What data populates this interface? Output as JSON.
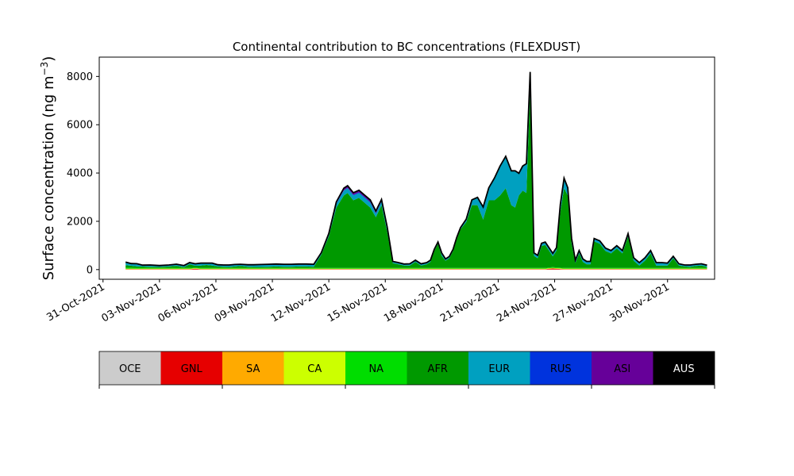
{
  "chart_data": {
    "type": "area",
    "stacked": true,
    "title": "Continental contribution to BC concentrations (FLEXDUST)",
    "ylabel_main": "Surface concentration (ng m",
    "ylabel_sup": "−3",
    "ylabel_close": ")",
    "xlabel": "",
    "ylim": [
      -400,
      8800
    ],
    "yticks": [
      0,
      2000,
      4000,
      6000,
      8000
    ],
    "ytick_labels": [
      "0",
      "2000",
      "4000",
      "6000",
      "8000"
    ],
    "xlim_day": [
      -0.2,
      32.5
    ],
    "xticks_day": [
      0,
      3,
      6,
      9,
      12,
      15,
      18,
      21,
      24,
      27,
      30
    ],
    "xtick_labels": [
      "31-Oct-2021",
      "03-Nov-2021",
      "06-Nov-2021",
      "09-Nov-2021",
      "12-Nov-2021",
      "15-Nov-2021",
      "18-Nov-2021",
      "21-Nov-2021",
      "24-Nov-2021",
      "27-Nov-2021",
      "30-Nov-2021"
    ],
    "grid": false,
    "legend_position": "colorbar below plot",
    "x_day": [
      1.2,
      1.5,
      1.8,
      2.1,
      2.5,
      3.0,
      3.5,
      3.9,
      4.3,
      4.6,
      4.9,
      5.2,
      5.5,
      5.8,
      6.1,
      6.4,
      6.7,
      7.0,
      7.3,
      7.7,
      8.0,
      8.4,
      8.8,
      9.2,
      9.6,
      10.0,
      10.4,
      10.8,
      11.2,
      11.6,
      12.0,
      12.4,
      12.8,
      13.0,
      13.3,
      13.6,
      13.9,
      14.2,
      14.5,
      14.8,
      15.1,
      15.4,
      15.7,
      16.0,
      16.3,
      16.6,
      16.9,
      17.2,
      17.4,
      17.6,
      17.8,
      18.0,
      18.2,
      18.4,
      18.6,
      18.8,
      19.0,
      19.3,
      19.6,
      19.9,
      20.2,
      20.5,
      20.8,
      21.1,
      21.4,
      21.7,
      21.9,
      22.1,
      22.3,
      22.5,
      22.7,
      22.9,
      23.1,
      23.3,
      23.5,
      23.7,
      23.9,
      24.1,
      24.3,
      24.5,
      24.7,
      24.9,
      25.1,
      25.3,
      25.5,
      25.7,
      25.9,
      26.1,
      26.4,
      26.7,
      27.0,
      27.3,
      27.6,
      27.9,
      28.2,
      28.5,
      28.8,
      29.1,
      29.4,
      29.7,
      30.0,
      30.3,
      30.6,
      30.9,
      31.2,
      31.5,
      31.8,
      32.1
    ],
    "series": [
      {
        "name": "OCE",
        "color": "#cccccc",
        "values": [
          5,
          5,
          5,
          5,
          5,
          5,
          5,
          5,
          5,
          5,
          5,
          5,
          5,
          5,
          5,
          5,
          5,
          5,
          5,
          5,
          5,
          5,
          5,
          5,
          5,
          5,
          5,
          5,
          5,
          5,
          5,
          5,
          5,
          5,
          5,
          5,
          5,
          5,
          5,
          5,
          5,
          5,
          5,
          5,
          5,
          5,
          5,
          5,
          5,
          5,
          5,
          5,
          5,
          5,
          5,
          5,
          5,
          5,
          5,
          5,
          5,
          5,
          5,
          5,
          5,
          5,
          5,
          5,
          5,
          5,
          5,
          5,
          5,
          5,
          5,
          5,
          5,
          5,
          5,
          5,
          5,
          5,
          5,
          5,
          5,
          5,
          5,
          5,
          5,
          5,
          5,
          5,
          5,
          5,
          5,
          5,
          5,
          5,
          5,
          5,
          5,
          5,
          5,
          5,
          5,
          5,
          5,
          5
        ]
      },
      {
        "name": "GNL",
        "color": "#e60000",
        "values": [
          10,
          10,
          10,
          10,
          10,
          10,
          10,
          10,
          10,
          10,
          30,
          10,
          10,
          10,
          10,
          10,
          10,
          10,
          10,
          10,
          10,
          10,
          10,
          10,
          10,
          10,
          10,
          10,
          10,
          10,
          10,
          10,
          10,
          10,
          10,
          10,
          10,
          10,
          10,
          10,
          10,
          10,
          10,
          10,
          10,
          10,
          10,
          10,
          10,
          10,
          10,
          10,
          10,
          10,
          10,
          10,
          10,
          10,
          10,
          10,
          10,
          10,
          10,
          10,
          10,
          10,
          10,
          10,
          10,
          10,
          10,
          10,
          10,
          10,
          10,
          30,
          40,
          30,
          20,
          10,
          10,
          10,
          10,
          10,
          10,
          10,
          10,
          10,
          10,
          10,
          10,
          10,
          10,
          10,
          10,
          10,
          10,
          10,
          10,
          10,
          10,
          10,
          10,
          10,
          10,
          10,
          10,
          10
        ]
      },
      {
        "name": "SA",
        "color": "#ffaa00",
        "values": [
          10,
          10,
          10,
          10,
          10,
          10,
          10,
          10,
          10,
          10,
          10,
          10,
          10,
          10,
          10,
          10,
          10,
          10,
          10,
          10,
          10,
          10,
          10,
          10,
          10,
          10,
          10,
          10,
          10,
          10,
          10,
          10,
          10,
          10,
          10,
          10,
          10,
          10,
          10,
          10,
          10,
          10,
          10,
          10,
          10,
          10,
          10,
          10,
          10,
          10,
          10,
          10,
          10,
          10,
          10,
          10,
          10,
          10,
          10,
          10,
          10,
          10,
          10,
          10,
          10,
          10,
          10,
          10,
          10,
          10,
          10,
          10,
          10,
          10,
          10,
          10,
          10,
          10,
          10,
          10,
          10,
          10,
          10,
          10,
          10,
          10,
          10,
          10,
          10,
          10,
          10,
          10,
          10,
          10,
          10,
          10,
          10,
          10,
          10,
          10,
          10,
          10,
          10,
          10,
          10,
          10,
          10,
          10
        ]
      },
      {
        "name": "CA",
        "color": "#ccff00",
        "values": [
          15,
          15,
          15,
          15,
          15,
          15,
          15,
          15,
          15,
          15,
          15,
          15,
          15,
          15,
          15,
          15,
          15,
          15,
          15,
          15,
          15,
          15,
          15,
          15,
          15,
          15,
          15,
          15,
          15,
          15,
          15,
          15,
          15,
          15,
          15,
          15,
          15,
          15,
          15,
          15,
          15,
          15,
          15,
          15,
          15,
          15,
          15,
          15,
          15,
          15,
          15,
          15,
          15,
          15,
          15,
          15,
          15,
          15,
          15,
          15,
          15,
          15,
          15,
          15,
          15,
          15,
          15,
          15,
          15,
          15,
          15,
          15,
          15,
          15,
          15,
          15,
          15,
          15,
          15,
          15,
          15,
          15,
          15,
          15,
          15,
          15,
          15,
          15,
          15,
          15,
          15,
          15,
          15,
          15,
          15,
          15,
          15,
          15,
          15,
          15,
          15,
          15,
          15,
          15,
          15,
          15,
          15,
          15
        ]
      },
      {
        "name": "NA",
        "color": "#00dd00",
        "values": [
          40,
          40,
          35,
          35,
          30,
          30,
          30,
          35,
          30,
          30,
          30,
          30,
          30,
          30,
          30,
          30,
          30,
          30,
          30,
          30,
          30,
          30,
          30,
          30,
          30,
          30,
          30,
          30,
          30,
          30,
          30,
          30,
          30,
          30,
          30,
          30,
          30,
          30,
          30,
          30,
          30,
          30,
          30,
          30,
          30,
          30,
          30,
          30,
          30,
          30,
          30,
          30,
          30,
          30,
          30,
          30,
          30,
          30,
          30,
          30,
          30,
          30,
          30,
          30,
          30,
          30,
          30,
          30,
          30,
          30,
          30,
          30,
          30,
          30,
          30,
          30,
          30,
          30,
          30,
          30,
          30,
          30,
          30,
          30,
          30,
          30,
          30,
          30,
          30,
          30,
          30,
          30,
          30,
          30,
          30,
          30,
          30,
          30,
          30,
          30,
          30,
          30,
          30,
          30,
          30,
          30,
          30,
          30
        ]
      },
      {
        "name": "AFR",
        "color": "#009900",
        "values": [
          100,
          80,
          60,
          50,
          50,
          40,
          60,
          80,
          30,
          150,
          70,
          100,
          120,
          100,
          60,
          50,
          40,
          60,
          80,
          50,
          40,
          40,
          50,
          60,
          50,
          50,
          60,
          60,
          50,
          550,
          1300,
          2500,
          3000,
          3100,
          2800,
          2900,
          2700,
          2500,
          2100,
          2600,
          1500,
          200,
          150,
          100,
          100,
          250,
          100,
          150,
          250,
          700,
          1000,
          500,
          300,
          400,
          700,
          1200,
          1600,
          1900,
          2600,
          2600,
          2000,
          2800,
          2800,
          3000,
          3300,
          2600,
          2500,
          3000,
          3200,
          3100,
          7500,
          500,
          400,
          900,
          950,
          700,
          450,
          700,
          2300,
          3300,
          3000,
          1000,
          200,
          600,
          250,
          150,
          150,
          1100,
          1000,
          700,
          600,
          800,
          600,
          1300,
          300,
          100,
          300,
          600,
          100,
          100,
          100,
          400,
          100,
          60,
          50,
          80,
          100,
          40
        ]
      },
      {
        "name": "EUR",
        "color": "#00a0c0",
        "values": [
          110,
          70,
          90,
          40,
          50,
          40,
          40,
          50,
          50,
          50,
          60,
          80,
          60,
          80,
          50,
          50,
          60,
          60,
          50,
          60,
          70,
          80,
          80,
          80,
          80,
          80,
          80,
          80,
          80,
          60,
          80,
          150,
          200,
          200,
          200,
          200,
          200,
          200,
          150,
          150,
          150,
          50,
          50,
          40,
          50,
          50,
          50,
          50,
          50,
          50,
          50,
          100,
          50,
          50,
          50,
          50,
          50,
          100,
          200,
          300,
          500,
          500,
          900,
          1200,
          1300,
          1400,
          1500,
          900,
          1000,
          1200,
          600,
          100,
          100,
          100,
          100,
          100,
          100,
          100,
          300,
          400,
          300,
          200,
          100,
          100,
          100,
          100,
          100,
          100,
          100,
          100,
          100,
          100,
          100,
          100,
          100,
          100,
          100,
          100,
          100,
          100,
          80,
          60,
          50,
          40,
          50,
          50,
          50,
          50
        ]
      },
      {
        "name": "RUS",
        "color": "#0033dd",
        "values": [
          5,
          5,
          5,
          5,
          5,
          5,
          5,
          5,
          5,
          5,
          5,
          5,
          5,
          5,
          5,
          5,
          5,
          5,
          5,
          5,
          5,
          5,
          5,
          5,
          5,
          5,
          5,
          5,
          5,
          5,
          10,
          20,
          20,
          20,
          30,
          30,
          30,
          30,
          20,
          20,
          10,
          5,
          5,
          5,
          5,
          5,
          5,
          5,
          5,
          5,
          5,
          5,
          5,
          5,
          5,
          5,
          5,
          5,
          5,
          5,
          5,
          5,
          5,
          5,
          5,
          5,
          5,
          5,
          5,
          5,
          5,
          5,
          5,
          5,
          5,
          5,
          5,
          5,
          5,
          5,
          5,
          5,
          5,
          5,
          5,
          5,
          5,
          5,
          5,
          5,
          5,
          5,
          5,
          5,
          5,
          5,
          5,
          5,
          5,
          5,
          5,
          5,
          5,
          5,
          5,
          5,
          5,
          5
        ]
      },
      {
        "name": "ASI",
        "color": "#660099",
        "values": [
          10,
          10,
          10,
          10,
          10,
          10,
          10,
          10,
          10,
          10,
          10,
          10,
          10,
          10,
          10,
          10,
          10,
          10,
          10,
          10,
          10,
          10,
          10,
          10,
          10,
          10,
          10,
          10,
          10,
          10,
          30,
          60,
          80,
          80,
          80,
          80,
          80,
          80,
          80,
          60,
          40,
          10,
          10,
          10,
          10,
          10,
          10,
          10,
          10,
          10,
          10,
          10,
          10,
          10,
          10,
          10,
          10,
          10,
          10,
          10,
          10,
          10,
          10,
          10,
          10,
          10,
          10,
          10,
          10,
          10,
          10,
          10,
          10,
          10,
          10,
          10,
          10,
          10,
          10,
          10,
          10,
          10,
          10,
          10,
          10,
          10,
          10,
          10,
          10,
          10,
          10,
          10,
          10,
          10,
          10,
          10,
          10,
          10,
          10,
          10,
          10,
          10,
          10,
          10,
          10,
          10,
          10,
          10
        ]
      },
      {
        "name": "AUS",
        "color": "#000000",
        "values": [
          5,
          5,
          5,
          5,
          5,
          5,
          5,
          5,
          5,
          5,
          5,
          5,
          5,
          5,
          5,
          5,
          5,
          5,
          5,
          5,
          5,
          5,
          5,
          5,
          5,
          5,
          5,
          5,
          5,
          5,
          5,
          5,
          5,
          5,
          5,
          5,
          5,
          5,
          5,
          5,
          5,
          5,
          5,
          5,
          5,
          5,
          5,
          5,
          5,
          5,
          5,
          5,
          5,
          5,
          5,
          5,
          5,
          5,
          5,
          5,
          5,
          5,
          5,
          5,
          5,
          5,
          5,
          5,
          5,
          5,
          5,
          5,
          5,
          5,
          5,
          5,
          5,
          5,
          5,
          5,
          5,
          5,
          5,
          5,
          5,
          5,
          5,
          5,
          5,
          5,
          5,
          5,
          5,
          5,
          5,
          5,
          5,
          5,
          5,
          5,
          5,
          5,
          5,
          5,
          5,
          5,
          5,
          5
        ]
      }
    ]
  }
}
